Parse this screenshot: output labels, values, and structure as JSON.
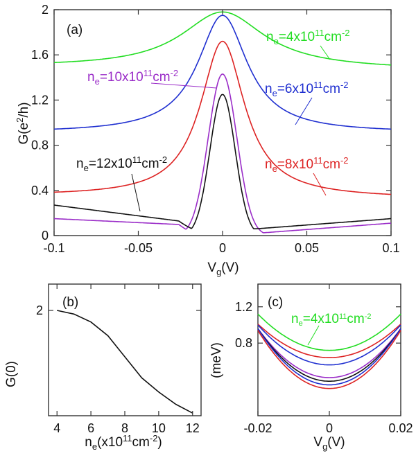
{
  "chart_data": [
    {
      "panel_label": "(a)",
      "type": "line",
      "xlabel_main": "V",
      "xlabel_sub": "g",
      "xlabel_unit": "(V)",
      "ylabel_main": "G(e",
      "ylabel_sup": "2",
      "ylabel_unit": "/h)",
      "xlim": [
        -0.1,
        0.1
      ],
      "ylim": [
        0,
        2
      ],
      "xticks": [
        -0.1,
        -0.05,
        0,
        0.05,
        0.1
      ],
      "xtick_labels": [
        "-0.1",
        "-0.05",
        "0",
        "0.05",
        "0.1"
      ],
      "yticks": [
        0,
        0.4,
        0.8,
        1.2,
        1.6,
        2
      ],
      "ytick_labels": [
        "0",
        "0.4",
        "0.8",
        "1.2",
        "1.6",
        "2"
      ],
      "grid": false,
      "series": [
        {
          "name_pre": "n",
          "name_sub": "e",
          "name_mid": "=4x10",
          "name_sup1": "11",
          "name_unit": "cm",
          "name_sup2": "-2",
          "color": "#22dd22",
          "type": "lorentz",
          "base": 1.48,
          "peak": 1.98,
          "width": 0.03,
          "tail": 0.06,
          "label_pos": "upper-right"
        },
        {
          "name_pre": "n",
          "name_sub": "e",
          "name_mid": "=6x10",
          "name_sup1": "11",
          "name_unit": "cm",
          "name_sup2": "-2",
          "color": "#1f2fd0",
          "type": "lorentz",
          "base": 0.91,
          "peak": 1.95,
          "width": 0.018,
          "tail": 0.0,
          "label_pos": "right"
        },
        {
          "name_pre": "n",
          "name_sub": "e",
          "name_mid": "=8x10",
          "name_sup1": "11",
          "name_unit": "cm",
          "name_sup2": "-2",
          "color": "#dd2222",
          "type": "lorentz",
          "base": 0.34,
          "peak": 1.72,
          "width": 0.016,
          "tail": 0.05,
          "label_pos": "lower-right"
        },
        {
          "name_pre": "n",
          "name_sub": "e",
          "name_mid": "=10x10",
          "name_sup1": "11",
          "name_unit": "cm",
          "name_sup2": "-2",
          "color": "#9a2cc8",
          "type": "dip",
          "peak": 1.43,
          "width": 0.0085,
          "left_edge": 0.15,
          "min_val": 0.02,
          "label_pos": "upper-left"
        },
        {
          "name_pre": "n",
          "name_sub": "e",
          "name_mid": "=12x10",
          "name_sup1": "11",
          "name_unit": "cm",
          "name_sup2": "-2",
          "color": "#111111",
          "type": "dip",
          "peak": 1.25,
          "width": 0.0075,
          "left_edge": 0.27,
          "min_val": 0.06,
          "label_pos": "lower-left"
        }
      ]
    },
    {
      "panel_label": "(b)",
      "type": "line",
      "xlabel_main": "n",
      "xlabel_sub": "e",
      "xlabel_mid": "(x10",
      "xlabel_sup1": "11",
      "xlabel_unit": "cm",
      "xlabel_sup2": "-2",
      "xlabel_end": ")",
      "ylabel": "G(0)",
      "xlim": [
        3.5,
        12.5
      ],
      "ylim": [
        0,
        2.5
      ],
      "xticks": [
        4,
        6,
        8,
        10,
        12
      ],
      "xtick_labels": [
        "4",
        "6",
        "8",
        "10",
        "12"
      ],
      "yticks": [
        2
      ],
      "ytick_labels": [
        "2"
      ],
      "series": [
        {
          "name": "G(0)",
          "color": "#111111",
          "x": [
            4,
            5,
            6,
            7,
            8,
            9,
            10,
            11,
            12
          ],
          "y": [
            2.0,
            1.93,
            1.78,
            1.52,
            1.12,
            0.72,
            0.45,
            0.22,
            0.05
          ]
        }
      ]
    },
    {
      "panel_label": "(c)",
      "type": "line",
      "xlabel_main": "V",
      "xlabel_sub": "g",
      "xlabel_unit": "(V)",
      "ylabel": "(meV)",
      "xlim": [
        -0.02,
        0.02
      ],
      "ylim": [
        0,
        1.45
      ],
      "xticks": [
        -0.02,
        0,
        0.02
      ],
      "xtick_labels": [
        "-0.02",
        "0",
        "0.02"
      ],
      "yticks": [
        0.8,
        1.2
      ],
      "ytick_labels": [
        "0.8",
        "1.2"
      ],
      "annotation": {
        "pre": "n",
        "sub": "e",
        "mid": "=4x10",
        "sup1": "11",
        "unit": "cm",
        "sup2": "-2",
        "color": "#22dd22"
      },
      "series": [
        {
          "color": "#22dd22",
          "a": 0.72,
          "b": 0.4
        },
        {
          "color": "#dd2222",
          "a": 0.64,
          "b": 0.37
        },
        {
          "color": "#1f2fd0",
          "a": 0.56,
          "b": 0.44
        },
        {
          "color": "#9a2cc8",
          "a": 0.42,
          "b": 0.54
        },
        {
          "color": "#111111",
          "a": 0.38,
          "b": 0.58
        },
        {
          "color": "#1f2fd0",
          "a": 0.34,
          "b": 0.62
        },
        {
          "color": "#dd2222",
          "a": 0.3,
          "b": 0.64
        }
      ]
    }
  ]
}
